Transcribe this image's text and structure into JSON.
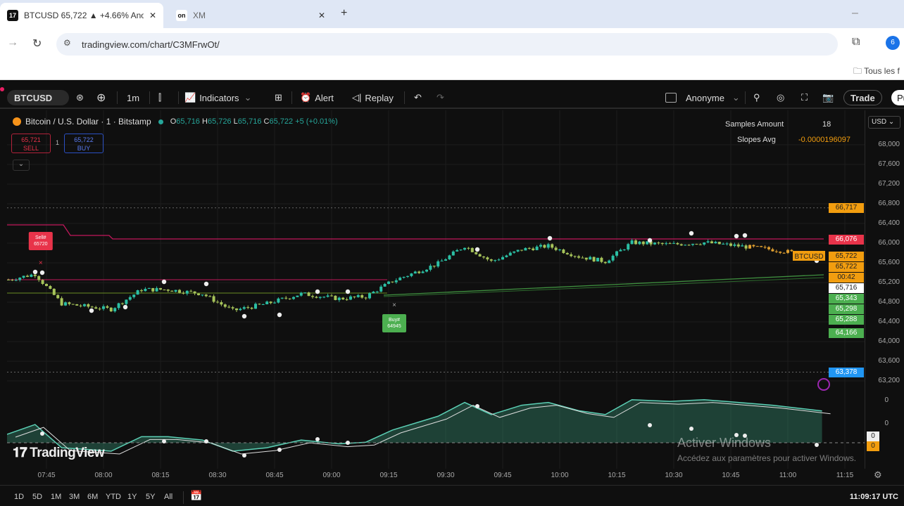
{
  "browser": {
    "tabs": [
      {
        "title": "BTCUSD 65,722 ▲ +4.66% Ano",
        "icon": "tradingview-favicon",
        "active": true
      },
      {
        "title": "XM",
        "icon": "xm-favicon",
        "active": false
      }
    ],
    "new_tab": "+",
    "url": "tradingview.com/chart/C3MFrwOt/",
    "bookmark": "Tous les f",
    "profile_initial": "6"
  },
  "toolbar": {
    "symbol": "BTCUSD",
    "interval": "1m",
    "indicators": "Indicators",
    "alert": "Alert",
    "replay": "Replay",
    "layout_name": "Anonyme",
    "trade": "Trade",
    "publish": "Pu"
  },
  "legend": {
    "title": "Bitcoin / U.S. Dollar · 1 · Bitstamp",
    "o_label": "O",
    "o": "65,716",
    "h_label": "H",
    "h": "65,726",
    "l_label": "L",
    "l": "65,716",
    "c_label": "C",
    "c": "65,722",
    "change": "+5 (+0.01%)",
    "sell_price": "65,721",
    "sell_label": "SELL",
    "spread": "1",
    "buy_price": "65,722",
    "buy_label": "BUY"
  },
  "indicator_table": {
    "samples_label": "Samples Amount",
    "samples_value": "18",
    "slope_label": "Slopes Avg",
    "slope_value": "-0.0000196097"
  },
  "currency": "USD",
  "colors": {
    "bg": "#0f0f0f",
    "up": "#2bbfa4",
    "down": "#a6c35a",
    "late": "#e0a030",
    "red_line": "#c2185b",
    "green_line": "#3f8f3f",
    "orange": "#f29d0f"
  },
  "chart_data": {
    "type": "candlestick",
    "symbol": "BTCUSD",
    "interval": "1m",
    "ylim": [
      63000,
      68200
    ],
    "y_ticks": [
      68000,
      67600,
      67200,
      66800,
      66400,
      66000,
      65600,
      65200,
      64800,
      64400,
      64000,
      63600,
      63200
    ],
    "x_ticks": [
      "07:45",
      "08:00",
      "08:15",
      "08:30",
      "08:45",
      "09:00",
      "09:15",
      "09:30",
      "09:45",
      "10:00",
      "10:15",
      "10:30",
      "10:45",
      "11:00",
      "11:15"
    ],
    "close_path": [
      [
        "07:35",
        65257
      ],
      [
        "07:42",
        65371
      ],
      [
        "07:49",
        64771
      ],
      [
        "08:02",
        64657
      ],
      [
        "08:10",
        65057
      ],
      [
        "08:17",
        65057
      ],
      [
        "08:26",
        64971
      ],
      [
        "08:34",
        64629
      ],
      [
        "08:43",
        64771
      ],
      [
        "08:52",
        64971
      ],
      [
        "09:02",
        64871
      ],
      [
        "09:09",
        64914
      ],
      [
        "09:16",
        65229
      ],
      [
        "09:28",
        65586
      ],
      [
        "09:35",
        65943
      ],
      [
        "09:42",
        65629
      ],
      [
        "09:50",
        65871
      ],
      [
        "09:57",
        65943
      ],
      [
        "10:05",
        65729
      ],
      [
        "10:12",
        65629
      ],
      [
        "10:19",
        66014
      ],
      [
        "10:29",
        65971
      ],
      [
        "10:38",
        66014
      ],
      [
        "10:47",
        65943
      ],
      [
        "10:56",
        65871
      ],
      [
        "11:09",
        65722
      ]
    ],
    "price_labels": [
      {
        "text": "66,717",
        "price": 66717,
        "bg": "#f29d0f",
        "fg": "#222"
      },
      {
        "text": "66,076",
        "price": 66076,
        "bg": "#e8334a",
        "fg": "#fff"
      },
      {
        "text": "65,722",
        "price": 65722,
        "bg": "#f29d0f",
        "fg": "#222"
      },
      {
        "text": "65,722",
        "price": 65620,
        "bg": "#f29d0f",
        "fg": "#222"
      },
      {
        "text": "00:42",
        "price": 65520,
        "bg": "#f29d0f",
        "fg": "#222"
      },
      {
        "text": "65,716",
        "price": 65420,
        "bg": "#ffffff",
        "fg": "#222"
      },
      {
        "text": "65,343",
        "price": 65320,
        "bg": "#4caf50",
        "fg": "#fff"
      },
      {
        "text": "65,298",
        "price": 65180,
        "bg": "#4caf50",
        "fg": "#fff"
      },
      {
        "text": "65,288",
        "price": 65040,
        "bg": "#4caf50",
        "fg": "#fff"
      },
      {
        "text": "64,166",
        "price": 64166,
        "bg": "#4caf50",
        "fg": "#fff"
      },
      {
        "text": "63,378",
        "price": 63378,
        "bg": "#2196f3",
        "fg": "#fff"
      }
    ],
    "symbol_tag": "BTCUSD",
    "signals": [
      {
        "text": "Sell#",
        "sub": "65720",
        "time": "07:42",
        "color": "#e8334a"
      },
      {
        "text": "Buy#",
        "sub": "64945",
        "time": "09:15",
        "color": "#4caf50"
      }
    ],
    "oscillator_ticks": [
      "0",
      "0"
    ],
    "oscillator_values": [
      "0",
      "0"
    ]
  },
  "watermark": "TradingView",
  "bottom": {
    "ranges": [
      "1D",
      "5D",
      "1M",
      "3M",
      "6M",
      "YTD",
      "1Y",
      "5Y",
      "All"
    ],
    "clock": "11:09:17 UTC"
  },
  "os_overlay": {
    "title": "Activer Windows",
    "subtitle": "Accédez aux paramètres pour activer Windows."
  }
}
